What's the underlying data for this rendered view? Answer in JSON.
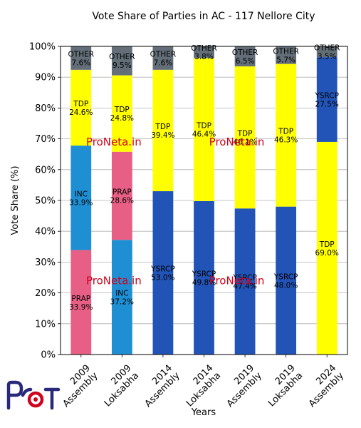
{
  "chart_data": {
    "type": "bar",
    "stacked": true,
    "title": "Vote Share of Parties in AC - 117 Nellore City",
    "xlabel": "Years",
    "ylabel": "Vote Share (%)",
    "ylim": [
      0,
      100
    ],
    "yticks": [
      "0%",
      "10%",
      "20%",
      "30%",
      "40%",
      "50%",
      "60%",
      "70%",
      "80%",
      "90%",
      "100%"
    ],
    "grid": true,
    "categories": [
      [
        "2009",
        "Assembly"
      ],
      [
        "2009",
        "Loksabha"
      ],
      [
        "2014",
        "Assembly"
      ],
      [
        "2014",
        "Loksabha"
      ],
      [
        "2019",
        "Assembly"
      ],
      [
        "2019",
        "Loksabha"
      ],
      [
        "2024",
        "Assembly"
      ]
    ],
    "bars": [
      [
        {
          "party": "PRAP",
          "value": 33.9
        },
        {
          "party": "INC",
          "value": 33.9
        },
        {
          "party": "TDP",
          "value": 24.6
        },
        {
          "party": "OTHER",
          "value": 7.6
        }
      ],
      [
        {
          "party": "INC",
          "value": 37.2
        },
        {
          "party": "PRAP",
          "value": 28.6
        },
        {
          "party": "TDP",
          "value": 24.8
        },
        {
          "party": "OTHER",
          "value": 9.5
        }
      ],
      [
        {
          "party": "YSRCP",
          "value": 53.0
        },
        {
          "party": "TDP",
          "value": 39.4
        },
        {
          "party": "OTHER",
          "value": 7.6
        }
      ],
      [
        {
          "party": "YSRCP",
          "value": 49.8
        },
        {
          "party": "TDP",
          "value": 46.4
        },
        {
          "party": "OTHER",
          "value": 3.8
        }
      ],
      [
        {
          "party": "YSRCP",
          "value": 47.4
        },
        {
          "party": "TDP",
          "value": 46.1
        },
        {
          "party": "OTHER",
          "value": 6.5
        }
      ],
      [
        {
          "party": "YSRCP",
          "value": 48.0
        },
        {
          "party": "TDP",
          "value": 46.3
        },
        {
          "party": "OTHER",
          "value": 5.7
        }
      ],
      [
        {
          "party": "TDP",
          "value": 69.0
        },
        {
          "party": "YSRCP",
          "value": 27.5
        },
        {
          "party": "OTHER",
          "value": 3.5
        }
      ]
    ],
    "party_colors": {
      "PRAP": "#e75f85",
      "INC": "#1f8fd4",
      "TDP": "#ffff00",
      "YSRCP": "#2253b6",
      "OTHER": "#636e78"
    },
    "watermark": "ProNeta.in",
    "watermark_color": "#d0021b"
  },
  "logo": {
    "text": "ProNeta",
    "colors": {
      "main": "#2a2a7a",
      "accent": "#d0021b"
    }
  }
}
